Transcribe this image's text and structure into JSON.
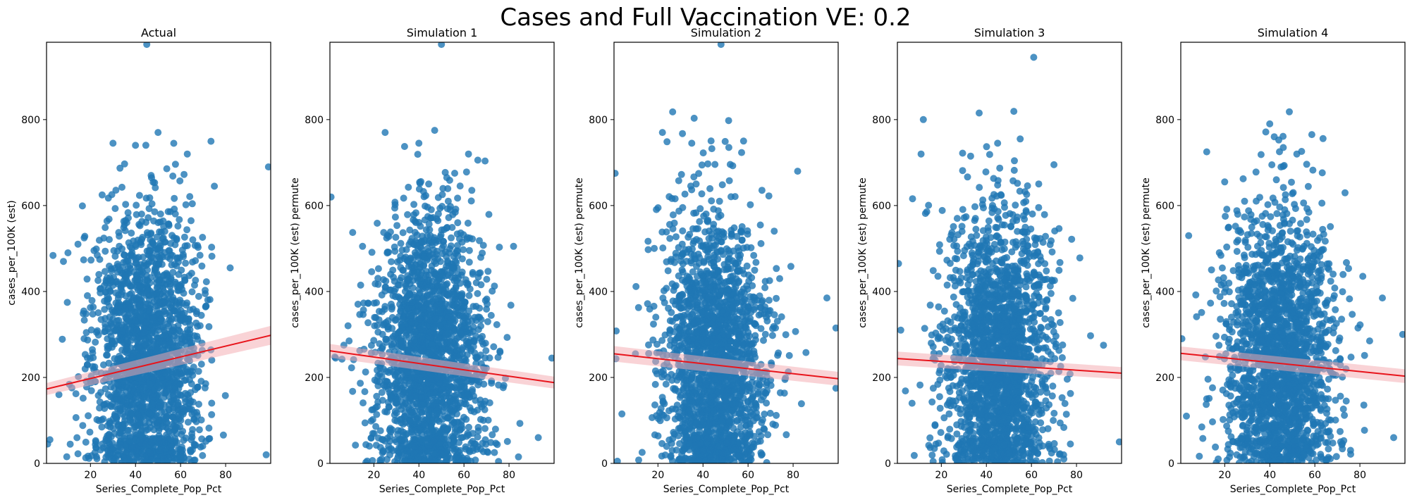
{
  "figure": {
    "title": "Cases and Full Vaccination VE: 0.2"
  },
  "colors": {
    "points": "#1f77b4",
    "fit_line": "#e8141b",
    "ci_band": "#f4a8ad"
  },
  "chart_data": [
    {
      "type": "scatter",
      "title": "Actual",
      "xlabel": "Series_Complete_Pop_Pct",
      "ylabel": "cases_per_100K (est)",
      "xlim": [
        0.5,
        100
      ],
      "ylim": [
        0,
        980
      ],
      "xticks": [
        20,
        40,
        60,
        80
      ],
      "yticks": [
        0,
        200,
        400,
        600,
        800
      ],
      "regression": {
        "x": [
          0.5,
          100
        ],
        "y": [
          173,
          298
        ],
        "ci_halfwidth_at_ends": [
          14,
          22
        ]
      },
      "cloud": {
        "n": 2000,
        "x_mean": 45,
        "x_sd": 12,
        "y_mean": 240,
        "y_sd": 170,
        "seed": 11
      },
      "outliers": [
        [
          45,
          975
        ],
        [
          30,
          745
        ],
        [
          40,
          740
        ],
        [
          50,
          770
        ],
        [
          63,
          720
        ],
        [
          75,
          645
        ],
        [
          8,
          470
        ],
        [
          10,
          490
        ],
        [
          99,
          690
        ],
        [
          98,
          20
        ],
        [
          82,
          455
        ],
        [
          2,
          55
        ],
        [
          1,
          45
        ],
        [
          6,
          160
        ]
      ]
    },
    {
      "type": "scatter",
      "title": "Simulation 1",
      "xlabel": "Series_Complete_Pop_Pct",
      "ylabel": "cases_per_100K (est) permute",
      "xlim": [
        0.5,
        100
      ],
      "ylim": [
        0,
        980
      ],
      "xticks": [
        20,
        40,
        60,
        80
      ],
      "yticks": [
        0,
        200,
        400,
        600,
        800
      ],
      "regression": {
        "x": [
          0.5,
          100
        ],
        "y": [
          262,
          188
        ],
        "ci_halfwidth_at_ends": [
          16,
          14
        ]
      },
      "cloud": {
        "n": 2000,
        "x_mean": 45,
        "x_sd": 12,
        "y_mean": 240,
        "y_sd": 170,
        "seed": 23
      },
      "outliers": [
        [
          50,
          975
        ],
        [
          25,
          770
        ],
        [
          40,
          745
        ],
        [
          47,
          775
        ],
        [
          62,
          720
        ],
        [
          1,
          620
        ],
        [
          15,
          505
        ],
        [
          82,
          505
        ],
        [
          93,
          60
        ],
        [
          99,
          245
        ],
        [
          3,
          245
        ],
        [
          9,
          285
        ]
      ]
    },
    {
      "type": "scatter",
      "title": "Simulation 2",
      "xlabel": "Series_Complete_Pop_Pct",
      "ylabel": "cases_per_100K (est) permute",
      "xlim": [
        0.5,
        100
      ],
      "ylim": [
        0,
        980
      ],
      "xticks": [
        20,
        40,
        60,
        80
      ],
      "yticks": [
        0,
        200,
        400,
        600,
        800
      ],
      "regression": {
        "x": [
          0.5,
          100
        ],
        "y": [
          255,
          197
        ],
        "ci_halfwidth_at_ends": [
          18,
          16
        ]
      },
      "cloud": {
        "n": 2000,
        "x_mean": 45,
        "x_sd": 12,
        "y_mean": 240,
        "y_sd": 170,
        "seed": 37
      },
      "outliers": [
        [
          48,
          975
        ],
        [
          22,
          770
        ],
        [
          35,
          745
        ],
        [
          58,
          750
        ],
        [
          82,
          680
        ],
        [
          1,
          675
        ],
        [
          10,
          255
        ],
        [
          99,
          315
        ],
        [
          99,
          175
        ],
        [
          95,
          385
        ],
        [
          4,
          115
        ],
        [
          2,
          5
        ]
      ]
    },
    {
      "type": "scatter",
      "title": "Simulation 3",
      "xlabel": "Series_Complete_Pop_Pct",
      "ylabel": "cases_per_100K (est) permute",
      "xlim": [
        0.5,
        100
      ],
      "ylim": [
        0,
        980
      ],
      "xticks": [
        20,
        40,
        60,
        80
      ],
      "yticks": [
        0,
        200,
        400,
        600,
        800
      ],
      "regression": {
        "x": [
          0.5,
          100
        ],
        "y": [
          244,
          210
        ],
        "ci_halfwidth_at_ends": [
          16,
          14
        ]
      },
      "cloud": {
        "n": 2000,
        "x_mean": 45,
        "x_sd": 12,
        "y_mean": 240,
        "y_sd": 170,
        "seed": 53
      },
      "outliers": [
        [
          61,
          945
        ],
        [
          12,
          800
        ],
        [
          11,
          720
        ],
        [
          33,
          715
        ],
        [
          45,
          745
        ],
        [
          55,
          755
        ],
        [
          70,
          695
        ],
        [
          1,
          465
        ],
        [
          2,
          310
        ],
        [
          99,
          50
        ],
        [
          92,
          275
        ],
        [
          7,
          140
        ]
      ]
    },
    {
      "type": "scatter",
      "title": "Simulation 4",
      "xlabel": "Series_Complete_Pop_Pct",
      "ylabel": "cases_per_100K (est) permute",
      "xlim": [
        0.5,
        100
      ],
      "ylim": [
        0,
        980
      ],
      "xticks": [
        20,
        40,
        60,
        80
      ],
      "yticks": [
        0,
        200,
        400,
        600,
        800
      ],
      "regression": {
        "x": [
          0.5,
          100
        ],
        "y": [
          256,
          203
        ],
        "ci_halfwidth_at_ends": [
          16,
          16
        ]
      },
      "cloud": {
        "n": 2000,
        "x_mean": 45,
        "x_sd": 12,
        "y_mean": 240,
        "y_sd": 170,
        "seed": 71
      },
      "outliers": [
        [
          40,
          790
        ],
        [
          42,
          760
        ],
        [
          46,
          735
        ],
        [
          12,
          725
        ],
        [
          20,
          655
        ],
        [
          52,
          720
        ],
        [
          1,
          290
        ],
        [
          4,
          530
        ],
        [
          95,
          60
        ],
        [
          99,
          300
        ],
        [
          90,
          385
        ],
        [
          3,
          110
        ]
      ]
    }
  ]
}
